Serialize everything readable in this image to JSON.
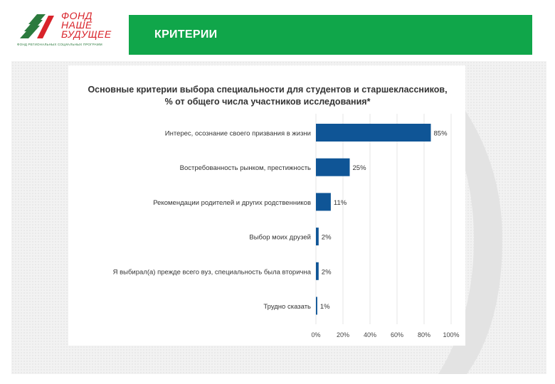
{
  "logo": {
    "name_lines": [
      "ФОНД",
      "НАШЕ",
      "БУДУЩЕЕ"
    ],
    "tagline": "ФОНД РЕГИОНАЛЬНЫХ СОЦИАЛЬНЫХ ПРОГРАММ"
  },
  "header": {
    "title": "КРИТЕРИИ"
  },
  "chart_data": {
    "type": "bar",
    "orientation": "horizontal",
    "title": "Основные критерии выбора специальности для студентов и старшеклассников,",
    "subtitle": "% от общего числа участников исследования*",
    "categories": [
      "Интерес, осознание своего призвания в жизни",
      "Востребованность рынком, престижность",
      "Рекомендации родителей и других родственников",
      "Выбор моих друзей",
      "Я выбирал(а) прежде всего вуз, специальность была вторична",
      "Трудно сказать"
    ],
    "values": [
      85,
      25,
      11,
      2,
      2,
      1
    ],
    "value_labels": [
      "85%",
      "25%",
      "11%",
      "2%",
      "2%",
      "1%"
    ],
    "xlim": [
      0,
      100
    ],
    "xticks": [
      "0%",
      "20%",
      "40%",
      "60%",
      "80%",
      "100%"
    ],
    "bar_color": "#0f5596",
    "grid": true
  },
  "colors": {
    "header": "#10a64a",
    "logo_red": "#d8232a",
    "logo_green": "#2b7a3d"
  }
}
